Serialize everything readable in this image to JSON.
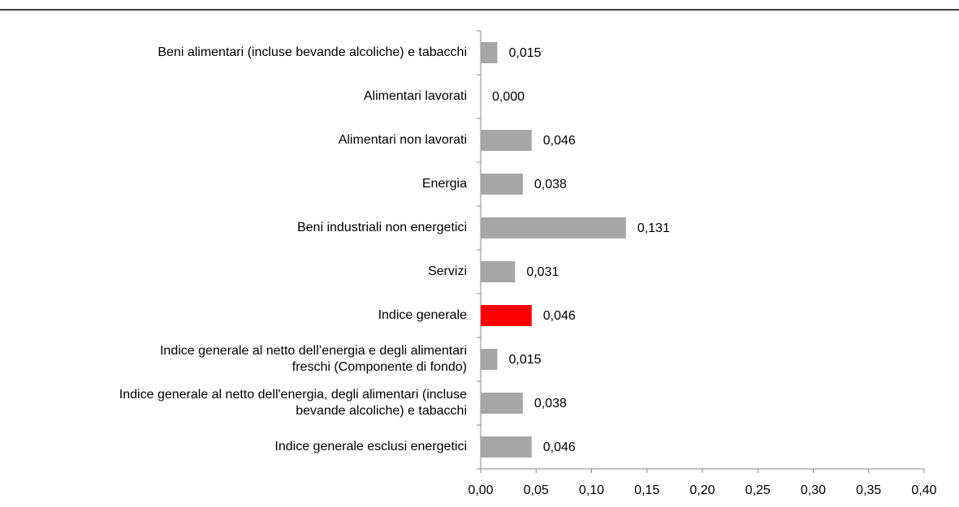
{
  "chart_data": {
    "type": "bar",
    "orientation": "horizontal",
    "categories": [
      "Beni alimentari (incluse bevande alcoliche) e tabacchi",
      "Alimentari lavorati",
      "Alimentari non lavorati",
      "Energia",
      "Beni industriali non energetici",
      "Servizi",
      "Indice generale",
      "Indice generale  al netto  dell’energia  e degli  alimentari\nfreschi  (Componente  di fondo)",
      "Indice generale al netto dell'energia, degli alimentari (incluse\nbevande alcoliche) e tabacchi",
      "Indice generale esclusi energetici"
    ],
    "values": [
      0.015,
      0.0,
      0.046,
      0.038,
      0.131,
      0.031,
      0.046,
      0.015,
      0.038,
      0.046
    ],
    "value_labels": [
      "0,015",
      "0,000",
      "0,046",
      "0,038",
      "0,131",
      "0,031",
      "0,046",
      "0,015",
      "0,038",
      "0,046"
    ],
    "colors": [
      "#a6a6a6",
      "#a6a6a6",
      "#a6a6a6",
      "#a6a6a6",
      "#a6a6a6",
      "#a6a6a6",
      "#ff0000",
      "#a6a6a6",
      "#a6a6a6",
      "#a6a6a6"
    ],
    "xlim": [
      0,
      0.4
    ],
    "xticks": [
      {
        "value": 0,
        "label": "0,00"
      },
      {
        "value": 0.05,
        "label": "0,05"
      },
      {
        "value": 0.1,
        "label": "0,10"
      },
      {
        "value": 0.15,
        "label": "0,15"
      },
      {
        "value": 0.2,
        "label": "0,20"
      },
      {
        "value": 0.25,
        "label": "0,25"
      },
      {
        "value": 0.3,
        "label": "0,30"
      },
      {
        "value": 0.35,
        "label": "0,35"
      },
      {
        "value": 0.4,
        "label": "0,40"
      }
    ],
    "grid": false
  }
}
